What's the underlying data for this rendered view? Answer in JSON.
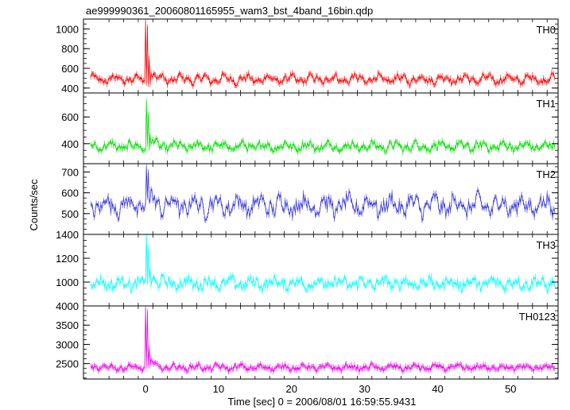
{
  "chart_data": {
    "type": "line",
    "title": "ae999990361_20060801165955_wam3_bst_4band_16bin.qdp",
    "xlabel": "Time [sec] 0 = 2006/08/01 16:59:55.9431",
    "ylabel": "Counts/sec",
    "x_ticks": [
      "0",
      "10",
      "20",
      "30",
      "40",
      "50"
    ],
    "x_tick_values": [
      0,
      10,
      20,
      30,
      40,
      50
    ],
    "xlim": [
      -8.5,
      56.5
    ],
    "panels": [
      {
        "name": "TH0",
        "color": "#ff0000",
        "ylim": [
          350,
          1100
        ],
        "ytick_values": [
          400,
          600,
          800,
          1000
        ],
        "ytick_labels": [
          "400",
          "600",
          "800",
          "1000"
        ],
        "baseline": 490,
        "amplitude": 45,
        "noise": 28,
        "spikes": [
          [
            0.05,
            1080
          ],
          [
            0.25,
            1020
          ],
          [
            0.45,
            700
          ],
          [
            0.7,
            560
          ]
        ]
      },
      {
        "name": "TH1",
        "color": "#00dd00",
        "ylim": [
          250,
          780
        ],
        "ytick_values": [
          400,
          600
        ],
        "ytick_labels": [
          "400",
          "600"
        ],
        "baseline": 380,
        "amplitude": 30,
        "noise": 25,
        "spikes": [
          [
            0.1,
            720
          ],
          [
            0.35,
            620
          ],
          [
            0.6,
            470
          ]
        ]
      },
      {
        "name": "TH2",
        "color": "#3333dd",
        "ylim": [
          400,
          740
        ],
        "ytick_values": [
          500,
          600,
          700
        ],
        "ytick_labels": [
          "500",
          "600",
          "700"
        ],
        "baseline": 540,
        "amplitude": 45,
        "noise": 32,
        "spikes": [
          [
            0.1,
            725
          ],
          [
            0.4,
            700
          ],
          [
            0.7,
            620
          ]
        ]
      },
      {
        "name": "TH3",
        "color": "#00ffff",
        "ylim": [
          800,
          1400
        ],
        "ytick_values": [
          1000,
          1200,
          1400
        ],
        "ytick_labels": [
          "1000",
          "1200",
          "1400"
        ],
        "baseline": 990,
        "amplitude": 40,
        "noise": 40,
        "spikes": [
          [
            0.1,
            1400
          ],
          [
            0.35,
            1280
          ],
          [
            0.6,
            1120
          ]
        ]
      },
      {
        "name": "TH0123",
        "color": "#ee00ee",
        "ylim": [
          2100,
          4000
        ],
        "ytick_values": [
          2500,
          3000,
          3500,
          4000
        ],
        "ytick_labels": [
          "2500",
          "3000",
          "3500",
          "4000"
        ],
        "baseline": 2400,
        "amplitude": 70,
        "noise": 55,
        "spikes": [
          [
            0.05,
            3950
          ],
          [
            0.25,
            3850
          ],
          [
            0.45,
            2900
          ],
          [
            0.7,
            2650
          ]
        ]
      }
    ],
    "grid": false,
    "legend": "none"
  }
}
